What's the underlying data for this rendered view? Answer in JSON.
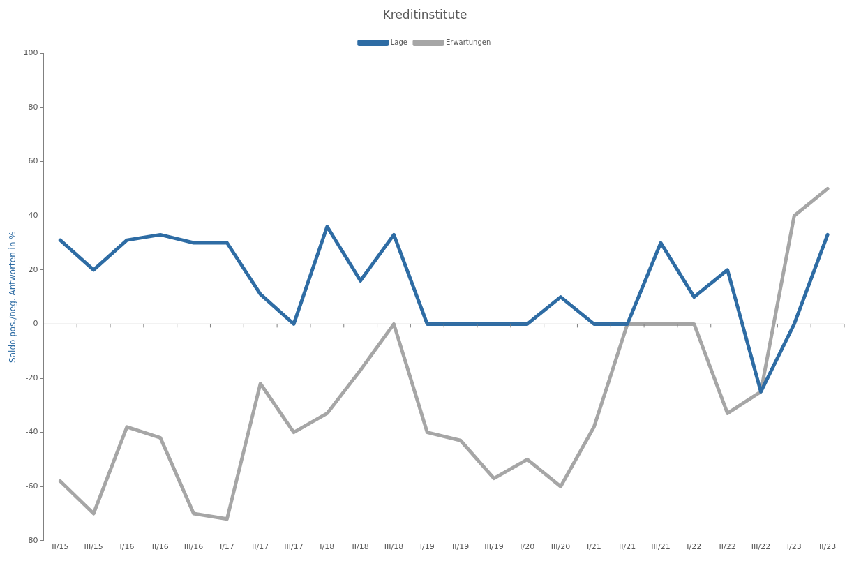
{
  "chart_data": {
    "type": "line",
    "title": "Kreditinstitute",
    "ylabel": "Saldo pos./neg. Antworten in %",
    "categories": [
      "II/15",
      "III/15",
      "I/16",
      "II/16",
      "III/16",
      "I/17",
      "II/17",
      "III/17",
      "I/18",
      "II/18",
      "III/18",
      "I/19",
      "II/19",
      "III/19",
      "I/20",
      "III/20",
      "I/21",
      "II/21",
      "III/21",
      "I/22",
      "II/22",
      "III/22",
      "I/23",
      "II/23"
    ],
    "series": [
      {
        "name": "Lage",
        "color": "#2e6ca4",
        "values": [
          31,
          20,
          31,
          33,
          30,
          30,
          11,
          0,
          36,
          16,
          33,
          0,
          0,
          0,
          0,
          10,
          0,
          0,
          30,
          10,
          20,
          -25,
          0,
          33
        ]
      },
      {
        "name": "Erwartungen",
        "color": "#a6a6a6",
        "values": [
          -58,
          -70,
          -38,
          -42,
          -70,
          -72,
          -22,
          -40,
          -33,
          -17,
          0,
          -40,
          -43,
          -57,
          -50,
          -60,
          -38,
          0,
          0,
          0,
          -33,
          -25,
          40,
          50
        ]
      }
    ],
    "ylim": [
      -80,
      100
    ],
    "yticks": [
      -80,
      -60,
      -40,
      -20,
      0,
      20,
      40,
      60,
      80,
      100
    ],
    "ref_lines": [
      {
        "axis": "y",
        "value": 0,
        "color": "#808080"
      }
    ],
    "grid": false,
    "legend": "top",
    "marker": "none",
    "line_style": "solid"
  }
}
